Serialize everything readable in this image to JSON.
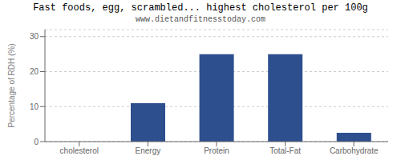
{
  "chart_data": {
    "type": "bar",
    "title": "Fast foods, egg, scrambled... highest cholesterol per 100g",
    "subtitle": "www.dietandfitnesstoday.com",
    "categories": [
      "cholesterol",
      "Energy",
      "Protein",
      "Total-Fat",
      "Carbohydrate"
    ],
    "values": [
      0,
      11,
      25,
      25,
      2.5
    ],
    "color": "#2d4f8e",
    "ylabel": "Percentage of RDH (%)",
    "ylim": [
      0,
      32
    ],
    "yticks": [
      0,
      10,
      20,
      30
    ],
    "grid": true
  }
}
